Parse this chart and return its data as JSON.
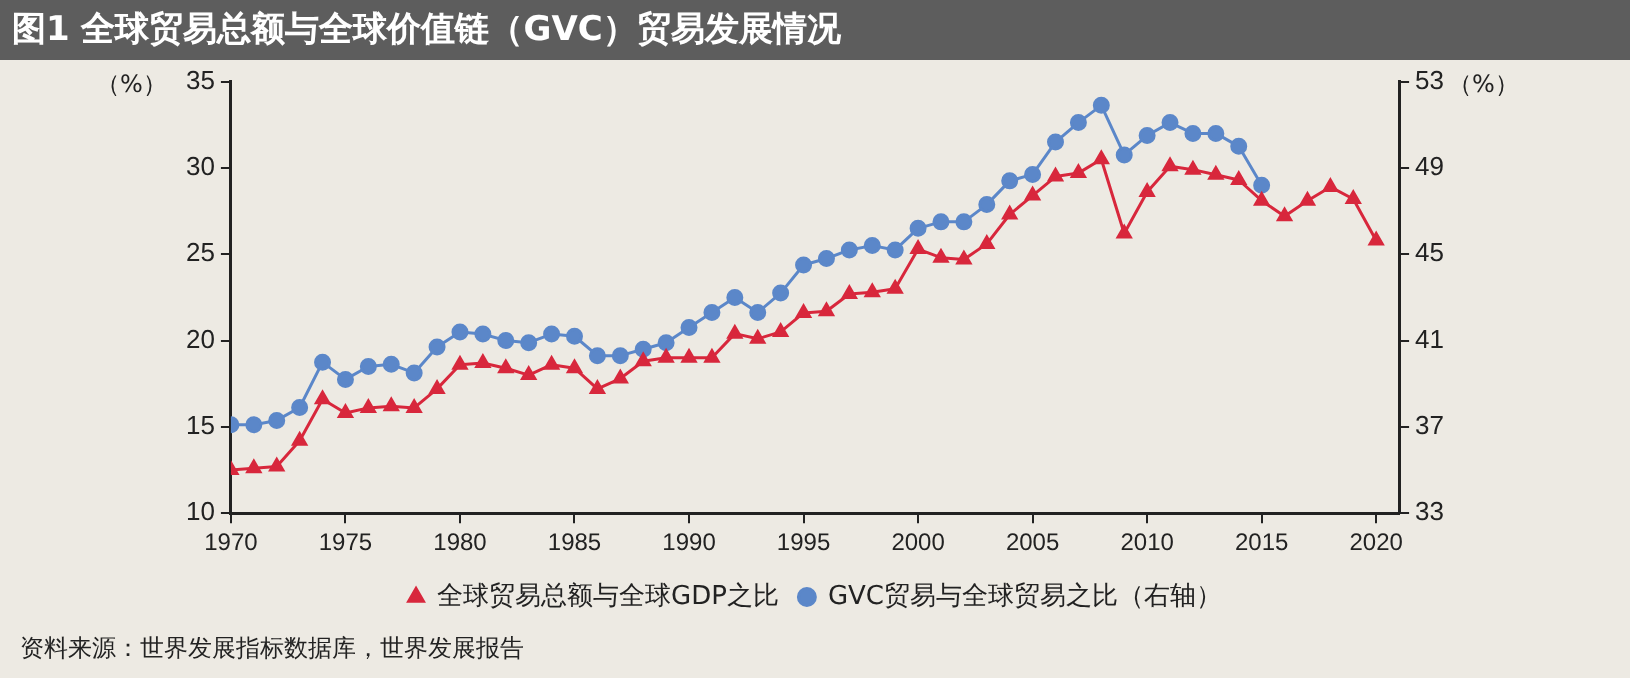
{
  "chart_data": {
    "type": "line",
    "title": "图1 全球贸易总额与全球价值链（GVC）贸易发展情况",
    "ylabel": "（%）",
    "y2label": "（%）",
    "x": [
      1970,
      1971,
      1972,
      1973,
      1974,
      1975,
      1976,
      1977,
      1978,
      1979,
      1980,
      1981,
      1982,
      1983,
      1984,
      1985,
      1986,
      1987,
      1988,
      1989,
      1990,
      1991,
      1992,
      1993,
      1994,
      1995,
      1996,
      1997,
      1998,
      1999,
      2000,
      2001,
      2002,
      2003,
      2004,
      2005,
      2006,
      2007,
      2008,
      2009,
      2010,
      2011,
      2012,
      2013,
      2014,
      2015,
      2016,
      2017,
      2018,
      2019,
      2020
    ],
    "series": [
      {
        "name": "全球贸易总额与全球GDP之比",
        "color": "#d8273c",
        "marker": "triangle",
        "values": [
          12.5,
          12.6,
          12.7,
          14.2,
          16.6,
          15.8,
          16.1,
          16.2,
          16.1,
          17.2,
          18.6,
          18.7,
          18.4,
          18.0,
          18.6,
          18.4,
          17.2,
          17.8,
          18.8,
          19.0,
          19.0,
          19.0,
          20.4,
          20.1,
          20.5,
          21.6,
          21.7,
          22.7,
          22.8,
          23.0,
          25.3,
          24.8,
          24.7,
          25.6,
          27.3,
          28.4,
          29.5,
          29.7,
          30.5,
          26.2,
          28.6,
          30.1,
          29.9,
          29.6,
          29.3,
          28.1,
          27.2,
          28.1,
          28.9,
          28.2,
          25.8
        ]
      },
      {
        "name": "GVC贸易与全球贸易之比（右轴）",
        "color": "#5b87c9",
        "marker": "circle",
        "axis": "y2",
        "values": [
          37.1,
          37.1,
          37.3,
          37.9,
          40.0,
          39.2,
          39.8,
          39.9,
          39.5,
          40.7,
          41.4,
          41.3,
          41.0,
          40.9,
          41.3,
          41.2,
          40.3,
          40.3,
          40.6,
          40.9,
          41.6,
          42.3,
          43.0,
          42.3,
          43.2,
          44.5,
          44.8,
          45.2,
          45.4,
          45.2,
          46.2,
          46.5,
          46.5,
          47.3,
          48.4,
          48.7,
          50.2,
          51.1,
          51.9,
          49.6,
          50.5,
          51.1,
          50.6,
          50.6,
          50.0,
          48.2,
          null,
          null,
          null,
          null,
          null
        ]
      }
    ],
    "xlim": [
      1970,
      2021
    ],
    "xticks": [
      1970,
      1975,
      1980,
      1985,
      1990,
      1995,
      2000,
      2005,
      2010,
      2015,
      2020
    ],
    "ylim": [
      10,
      35
    ],
    "yticks": [
      10,
      15,
      20,
      25,
      30,
      35
    ],
    "y2lim": [
      33,
      53
    ],
    "y2ticks": [
      33,
      37,
      41,
      45,
      49,
      53
    ],
    "grid": false,
    "legend": "bottom",
    "line_style": "solid",
    "annotations": [
      "资料来源：世界发展指标数据库，世界发展报告"
    ]
  }
}
